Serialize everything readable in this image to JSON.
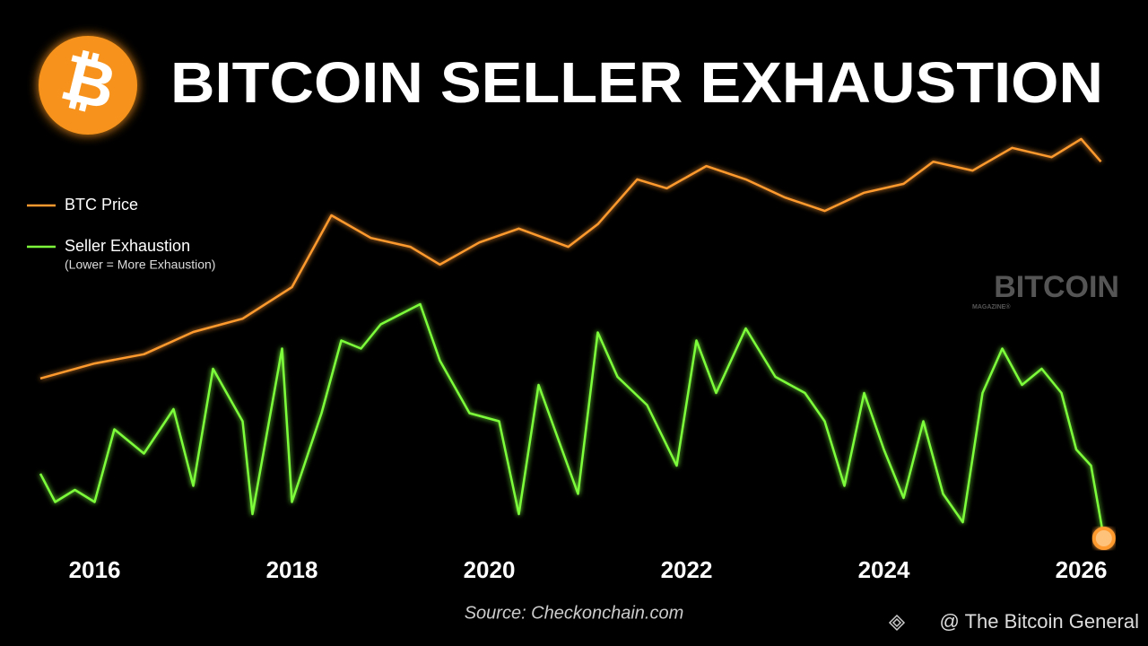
{
  "chart_data": {
    "type": "line",
    "title": "BITCOIN SELLER EXHAUSTION",
    "logo_symbol": "₿",
    "annotation": "(Lower = More Exhaustion)",
    "source": "Source: Checkonchain.com",
    "watermark": "BITCOIN",
    "watermark_sub": "MAGAZINE®",
    "credit": "@ The Bitcoin General",
    "legend": "top-left",
    "xlim": [
      2015.45,
      2026.3
    ],
    "xticks": [
      2016,
      2018,
      2020,
      2022,
      2024,
      2026
    ],
    "ylim": [
      0,
      100
    ],
    "series": [
      {
        "name": "BTC Price",
        "color": "#ff9a2e",
        "x": [
          2015.45,
          2016.0,
          2016.5,
          2017.0,
          2017.5,
          2018.0,
          2018.4,
          2018.8,
          2019.2,
          2019.5,
          2019.9,
          2020.3,
          2020.8,
          2021.1,
          2021.5,
          2021.8,
          2022.2,
          2022.6,
          2023.0,
          2023.4,
          2023.8,
          2024.2,
          2024.5,
          2024.9,
          2025.3,
          2025.7,
          2026.0,
          2026.2
        ],
        "values": [
          39.6,
          43.3,
          45.6,
          51.1,
          54.4,
          62.2,
          80.0,
          74.4,
          72.2,
          67.8,
          73.3,
          76.7,
          72.2,
          77.8,
          88.9,
          86.7,
          92.2,
          88.9,
          84.4,
          81.1,
          85.6,
          87.8,
          93.3,
          91.1,
          96.7,
          94.4,
          98.9,
          93.3
        ]
      },
      {
        "name": "Seller Exhaustion",
        "color": "#7dff3a",
        "x": [
          2015.45,
          2015.6,
          2015.8,
          2016.0,
          2016.2,
          2016.5,
          2016.8,
          2017.0,
          2017.2,
          2017.5,
          2017.6,
          2017.9,
          2018.0,
          2018.3,
          2018.5,
          2018.7,
          2018.9,
          2019.3,
          2019.5,
          2019.8,
          2020.1,
          2020.3,
          2020.5,
          2020.9,
          2021.1,
          2021.3,
          2021.6,
          2021.9,
          2022.1,
          2022.3,
          2022.6,
          2022.9,
          2023.2,
          2023.4,
          2023.6,
          2023.8,
          2024.0,
          2024.2,
          2024.4,
          2024.6,
          2024.8,
          2025.0,
          2025.2,
          2025.4,
          2025.6,
          2025.8,
          2025.95,
          2026.1,
          2026.23
        ],
        "values": [
          16,
          9,
          12,
          9,
          27,
          21,
          32,
          13,
          42,
          29,
          6,
          47,
          9,
          31,
          49,
          47,
          53,
          58,
          44,
          31,
          29,
          6,
          38,
          11,
          51,
          40,
          33,
          18,
          49,
          36,
          52,
          40,
          36,
          29,
          13,
          36,
          22,
          10,
          29,
          11,
          4,
          36,
          47,
          38,
          42,
          36,
          22,
          18,
          0
        ]
      }
    ]
  }
}
